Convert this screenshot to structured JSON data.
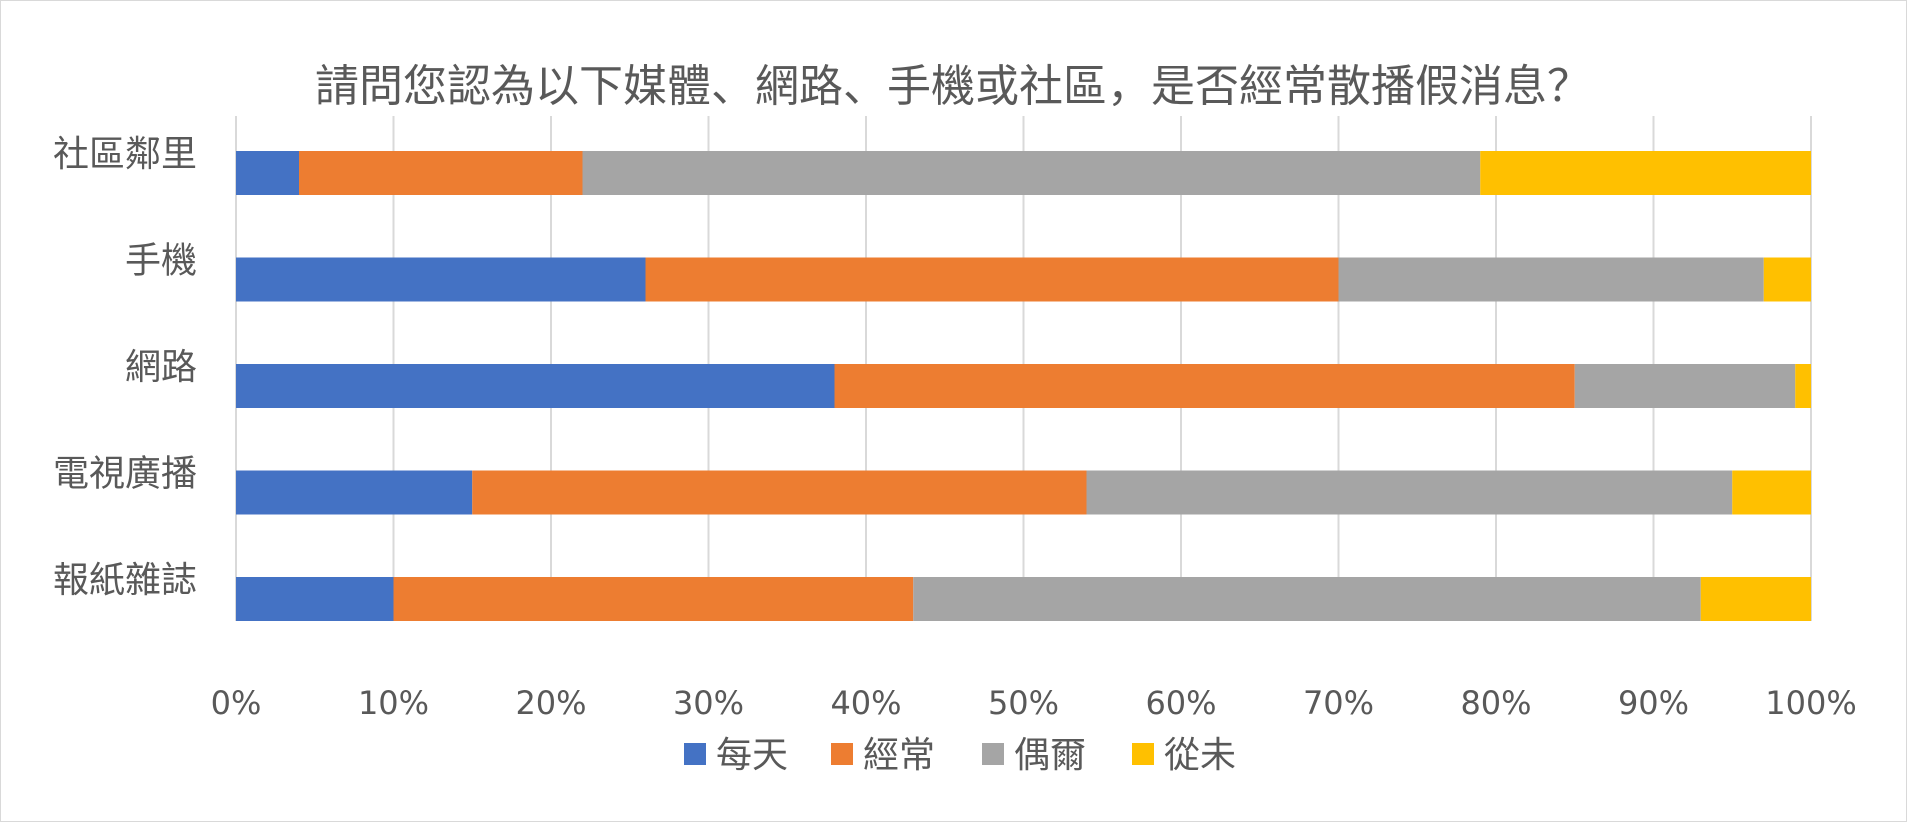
{
  "chart_data": {
    "type": "bar",
    "orientation": "horizontal",
    "stacking": "percent",
    "title": "請問您認為以下媒體、網路、手機或社區，是否經常散播假消息？",
    "categories": [
      "社區鄰里",
      "手機",
      "網路",
      "電視廣播",
      "報紙雜誌"
    ],
    "series": [
      {
        "name": "每天",
        "color": "#4472c4",
        "values": [
          4,
          26,
          38,
          15,
          10
        ]
      },
      {
        "name": "經常",
        "color": "#ed7d31",
        "values": [
          18,
          44,
          47,
          39,
          33
        ]
      },
      {
        "name": "偶爾",
        "color": "#a5a5a5",
        "values": [
          57,
          27,
          14,
          41,
          50
        ]
      },
      {
        "name": "從未",
        "color": "#ffc000",
        "values": [
          21,
          3,
          1,
          5,
          7
        ]
      }
    ],
    "xaxis": {
      "range": [
        0,
        100
      ],
      "ticks": [
        "0%",
        "10%",
        "20%",
        "30%",
        "40%",
        "50%",
        "60%",
        "70%",
        "80%",
        "90%",
        "100%"
      ]
    },
    "grid": true,
    "legend_position": "bottom"
  }
}
